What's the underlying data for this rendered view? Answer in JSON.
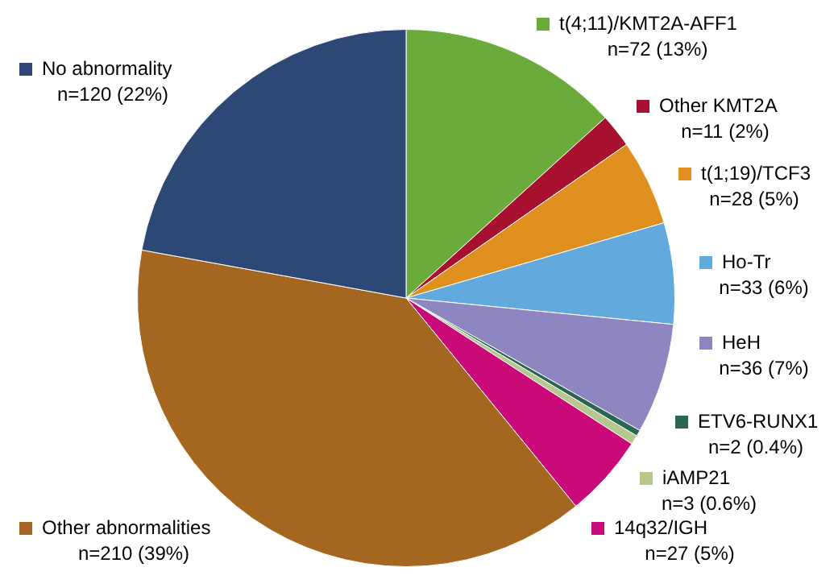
{
  "chart_data": {
    "type": "pie",
    "legend": "right",
    "categories": [
      "t(4;11)/KMT2A-AFF1",
      "Other KMT2A",
      "t(1;19)/TCF3",
      "Ho-Tr",
      "HeH",
      "ETV6-RUNX1",
      "iAMP21",
      "14q32/IGH",
      "Other abnormalities",
      "No abnormality"
    ],
    "values": [
      72,
      11,
      28,
      33,
      36,
      2,
      3,
      27,
      210,
      120
    ],
    "value_labels": [
      "n=72 (13%)",
      "n=11 (2%)",
      "n=28 (5%)",
      "n=33 (6%)",
      "n=36 (7%)",
      "n=2 (0.4%)",
      "n=3 (0.6%)",
      "n=27 (5%)",
      "n=210 (39%)",
      "n=120 (22%)"
    ],
    "colors": [
      "#6aab3c",
      "#a8102f",
      "#e0901e",
      "#62a9de",
      "#8d86c0",
      "#2a6653",
      "#b6c78f",
      "#c90a78",
      "#a5661f",
      "#2e4876"
    ]
  }
}
